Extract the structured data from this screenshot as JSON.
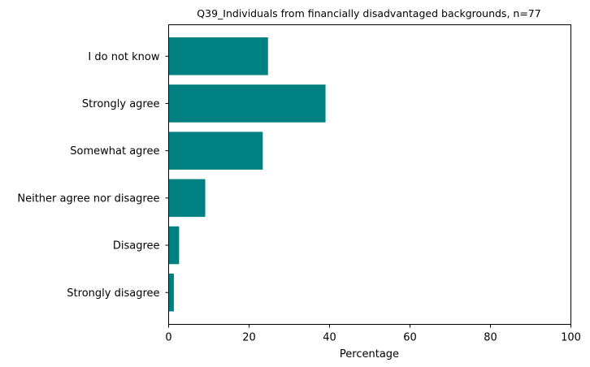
{
  "chart_data": {
    "type": "bar",
    "orientation": "horizontal",
    "title": "Q39_Individuals from financially disadvantaged backgrounds, n=77",
    "xlabel": "Percentage",
    "ylabel": "",
    "xlim": [
      0,
      100
    ],
    "xticks": [
      "0",
      "20",
      "40",
      "60",
      "80",
      "100"
    ],
    "bar_color": "#008080",
    "grid": false,
    "categories": [
      "I do not know",
      "Strongly agree",
      "Somewhat agree",
      "Neither agree nor disagree",
      "Disagree",
      "Strongly disagree"
    ],
    "values": [
      24.7,
      39.0,
      23.4,
      9.1,
      2.6,
      1.3
    ]
  }
}
